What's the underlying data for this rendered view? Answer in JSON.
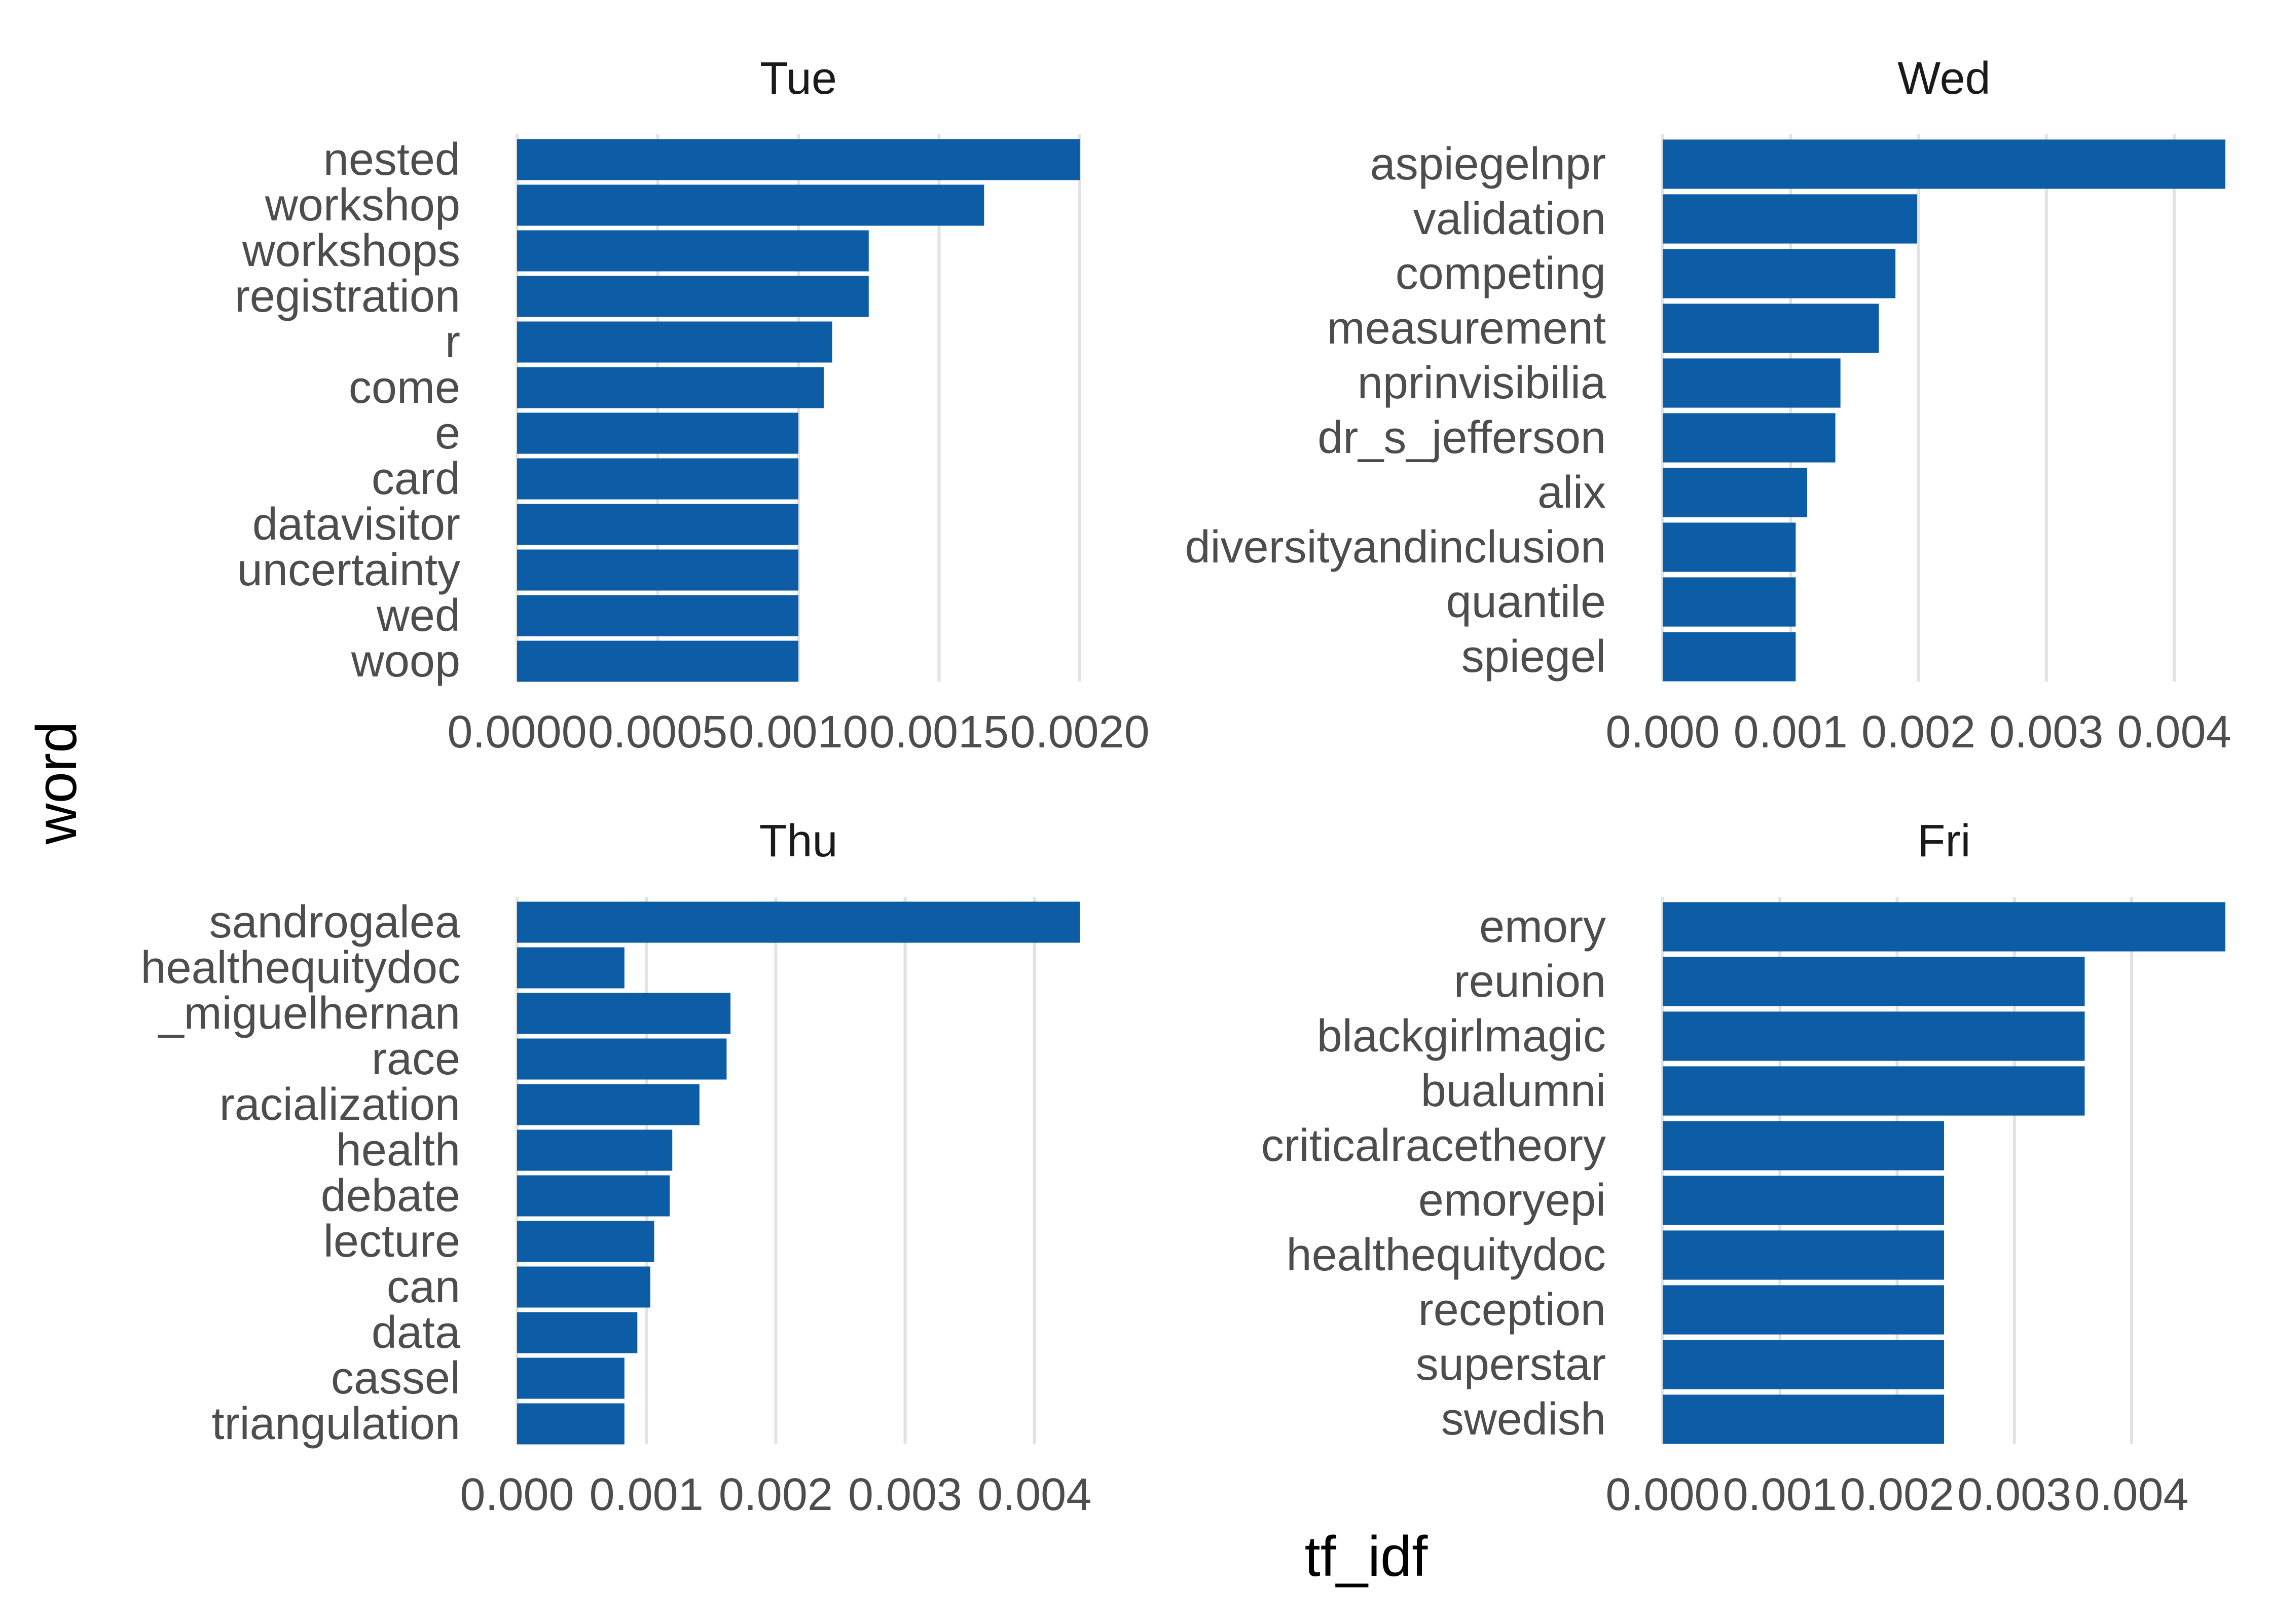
{
  "colors": {
    "bar": "#0C5DA5",
    "grid": "#e3e3e3",
    "background": "#ffffff"
  },
  "axes": {
    "x_title": "tf_idf",
    "y_title": "word"
  },
  "chart_data": [
    {
      "type": "bar",
      "orientation": "horizontal",
      "title": "Tue",
      "categories": [
        "nested",
        "workshop",
        "workshops",
        "registration",
        "r",
        "come",
        "e",
        "card",
        "datavisitor",
        "uncertainty",
        "wed",
        "woop"
      ],
      "values": [
        0.002,
        0.00166,
        0.00125,
        0.00125,
        0.00112,
        0.00109,
        0.001,
        0.001,
        0.001,
        0.001,
        0.001,
        0.001
      ],
      "xlim": [
        0,
        0.002
      ],
      "ticks": [
        0,
        0.0005,
        0.001,
        0.0015,
        0.002
      ],
      "tick_labels": [
        "0.0000",
        "0.0005",
        "0.0010",
        "0.0015",
        "0.0020"
      ],
      "xlabel": "tf_idf",
      "ylabel": "word"
    },
    {
      "type": "bar",
      "orientation": "horizontal",
      "title": "Wed",
      "categories": [
        "aspiegelnpr",
        "validation",
        "competing",
        "measurement",
        "nprinvisibilia",
        "dr_s_jefferson",
        "alix",
        "diversityandinclusion",
        "quantile",
        "spiegel"
      ],
      "values": [
        0.0044,
        0.00199,
        0.00182,
        0.00169,
        0.00139,
        0.00135,
        0.00113,
        0.00104,
        0.00104,
        0.00104
      ],
      "xlim": [
        0,
        0.0044
      ],
      "ticks": [
        0,
        0.001,
        0.002,
        0.003,
        0.004
      ],
      "tick_labels": [
        "0.000",
        "0.001",
        "0.002",
        "0.003",
        "0.004"
      ],
      "xlabel": "tf_idf",
      "ylabel": "word"
    },
    {
      "type": "bar",
      "orientation": "horizontal",
      "title": "Thu",
      "categories": [
        "sandrogalea",
        "healthequitydoc",
        "_miguelhernan",
        "race",
        "racialization",
        "health",
        "debate",
        "lecture",
        "can",
        "data",
        "cassel",
        "triangulation"
      ],
      "values": [
        0.00435,
        0.00083,
        0.00165,
        0.00162,
        0.00141,
        0.0012,
        0.00118,
        0.00106,
        0.00103,
        0.00093,
        0.00083,
        0.00083
      ],
      "xlim": [
        0,
        0.00435
      ],
      "ticks": [
        0,
        0.001,
        0.002,
        0.003,
        0.004
      ],
      "tick_labels": [
        "0.000",
        "0.001",
        "0.002",
        "0.003",
        "0.004"
      ],
      "xlabel": "tf_idf",
      "ylabel": "word"
    },
    {
      "type": "bar",
      "orientation": "horizontal",
      "title": "Fri",
      "categories": [
        "emory",
        "reunion",
        "blackgirlmagic",
        "bualumni",
        "criticalracetheory",
        "emoryepi",
        "healthequitydoc",
        "reception",
        "superstar",
        "swedish"
      ],
      "values": [
        0.0048,
        0.0036,
        0.0036,
        0.0036,
        0.0024,
        0.0024,
        0.0024,
        0.0024,
        0.0024,
        0.0024
      ],
      "xlim": [
        0,
        0.0048
      ],
      "ticks": [
        0,
        0.001,
        0.002,
        0.003,
        0.004
      ],
      "tick_labels": [
        "0.000",
        "0.001",
        "0.002",
        "0.003",
        "0.004"
      ],
      "xlabel": "tf_idf",
      "ylabel": "word"
    }
  ]
}
